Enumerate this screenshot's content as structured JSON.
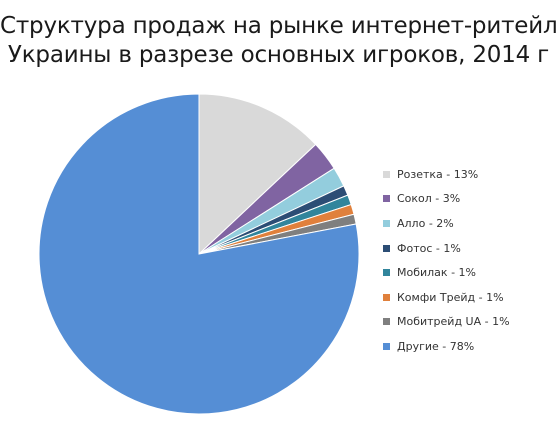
{
  "chart_data": {
    "type": "pie",
    "title_lines": [
      "Структура продаж на рынке интернет-ритейла",
      "Украины в разрезе основных игроков, 2014 г"
    ],
    "start_angle_deg": 0,
    "direction": "clockwise",
    "legend_position": "right",
    "slices": [
      {
        "name": "Розетка",
        "value": 13,
        "label": "Розетка - 13%",
        "color": "#D9D9D9"
      },
      {
        "name": "Сокол",
        "value": 3,
        "label": "Сокол - 3%",
        "color": "#8064A2"
      },
      {
        "name": "Алло",
        "value": 2,
        "label": "Алло - 2%",
        "color": "#93CDDD"
      },
      {
        "name": "Фотос",
        "value": 1,
        "label": "Фотос - 1%",
        "color": "#2C4D75"
      },
      {
        "name": "Мобилак",
        "value": 1,
        "label": "Мобилак - 1%",
        "color": "#31859C"
      },
      {
        "name": "Комфи Трейд",
        "value": 1,
        "label": "Комфи Трейд - 1%",
        "color": "#E0803C"
      },
      {
        "name": "Мобитрейд UA",
        "value": 1,
        "label": "Мобитрейд UA - 1%",
        "color": "#7F7F7F"
      },
      {
        "name": "Другие",
        "value": 78,
        "label": "Другие - 78%",
        "color": "#558ED5"
      }
    ]
  }
}
